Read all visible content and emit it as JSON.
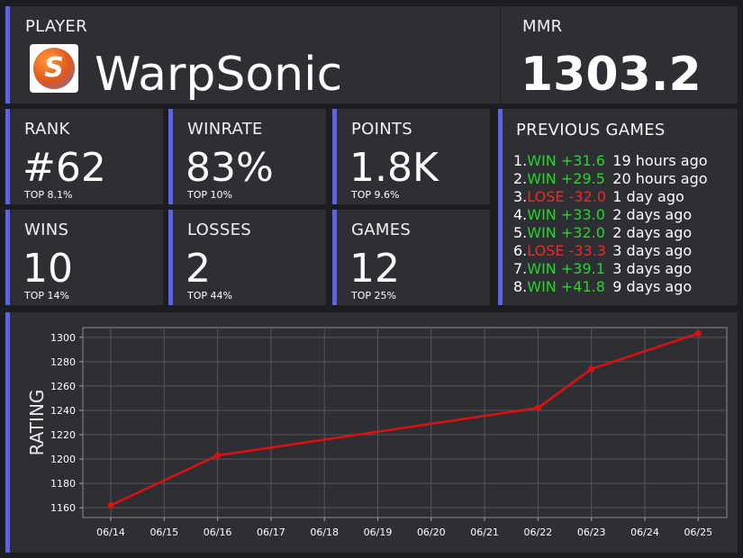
{
  "player": {
    "label": "PLAYER",
    "name": "WarpSonic",
    "avatar_letter": "S"
  },
  "mmr": {
    "label": "MMR",
    "value": "1303.2"
  },
  "stats": [
    {
      "label": "RANK",
      "value": "#62",
      "sub": "TOP 8.1%"
    },
    {
      "label": "WINRATE",
      "value": "83%",
      "sub": "TOP 10%"
    },
    {
      "label": "POINTS",
      "value": "1.8K",
      "sub": "TOP 9.6%"
    },
    {
      "label": "WINS",
      "value": "10",
      "sub": "TOP 14%"
    },
    {
      "label": "LOSSES",
      "value": "2",
      "sub": "TOP 44%"
    },
    {
      "label": "GAMES",
      "value": "12",
      "sub": "TOP 25%"
    }
  ],
  "previous_games": {
    "title": "PREVIOUS GAMES",
    "items": [
      {
        "num": "1.",
        "result": "WIN +31.6",
        "win": true,
        "time": "19 hours ago"
      },
      {
        "num": "2.",
        "result": "WIN +29.5",
        "win": true,
        "time": "20 hours ago"
      },
      {
        "num": "3.",
        "result": "LOSE -32.0",
        "win": false,
        "time": "1 day ago"
      },
      {
        "num": "4.",
        "result": "WIN +33.0",
        "win": true,
        "time": "2 days ago"
      },
      {
        "num": "5.",
        "result": "WIN +32.0",
        "win": true,
        "time": "2 days ago"
      },
      {
        "num": "6.",
        "result": "LOSE -33.3",
        "win": false,
        "time": "3 days ago"
      },
      {
        "num": "7.",
        "result": "WIN +39.1",
        "win": true,
        "time": "3 days ago"
      },
      {
        "num": "8.",
        "result": "WIN +41.8",
        "win": true,
        "time": "9 days ago"
      }
    ]
  },
  "colors": {
    "accent": "#5b63e6",
    "win": "#27d627",
    "lose": "#ee2a21",
    "line": "#e01010"
  },
  "chart_data": {
    "type": "line",
    "ylabel": "RATING",
    "xlabel": "",
    "x": [
      "06/14",
      "06/15",
      "06/16",
      "06/17",
      "06/18",
      "06/19",
      "06/20",
      "06/21",
      "06/22",
      "06/23",
      "06/24",
      "06/25"
    ],
    "yticks": [
      1160,
      1180,
      1200,
      1220,
      1240,
      1260,
      1280,
      1300
    ],
    "ylim": [
      1152,
      1308
    ],
    "grid": true,
    "series": [
      {
        "points": [
          {
            "x": "06/14",
            "y": 1162
          },
          {
            "x": "06/16",
            "y": 1203
          },
          {
            "x": "06/22",
            "y": 1242
          },
          {
            "x": "06/23",
            "y": 1274
          },
          {
            "x": "06/25",
            "y": 1303.2
          }
        ]
      }
    ]
  }
}
